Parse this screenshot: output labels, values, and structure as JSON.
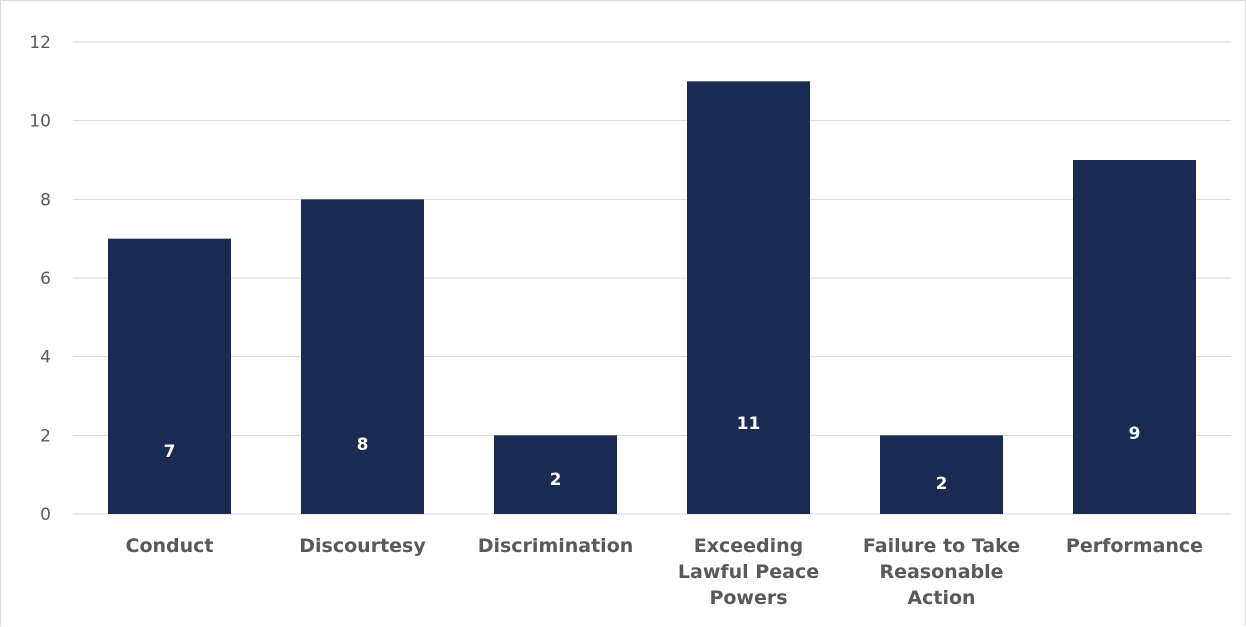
{
  "chart_data": {
    "type": "bar",
    "title": "",
    "xlabel": "",
    "ylabel": "",
    "categories": [
      [
        "Conduct"
      ],
      [
        "Discourtesy"
      ],
      [
        "Discrimination"
      ],
      [
        "Exceeding",
        "Lawful Peace",
        "Powers"
      ],
      [
        "Failure to Take",
        "Reasonable",
        "Action"
      ],
      [
        "Performance"
      ]
    ],
    "values": [
      7,
      8,
      2,
      11,
      2,
      9
    ],
    "ylim": [
      0,
      12
    ],
    "yticks": [
      0,
      2,
      4,
      6,
      8,
      10,
      12
    ],
    "grid": true,
    "legend": "none",
    "bar_color": "#1a2a52",
    "grid_color": "#d9d9d9",
    "axis_text_color": "#595959",
    "data_label_color": "#ffffff"
  }
}
